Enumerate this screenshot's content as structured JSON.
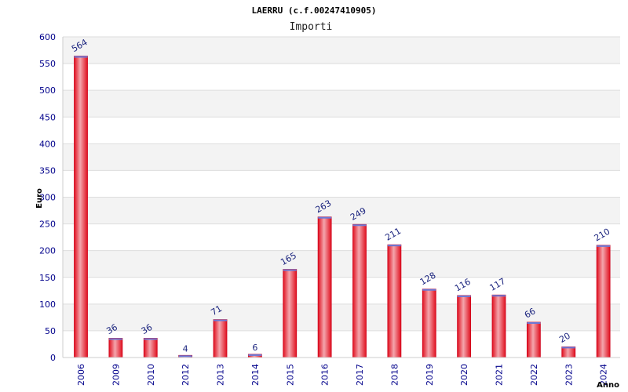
{
  "chart_data": {
    "type": "bar",
    "title": "LAERRU (c.f.00247410905)",
    "subtitle": "Importi",
    "xlabel": "Anno",
    "ylabel": "Euro",
    "categories": [
      "2006",
      "2009",
      "2010",
      "2012",
      "2013",
      "2014",
      "2015",
      "2016",
      "2017",
      "2018",
      "2019",
      "2020",
      "2021",
      "2022",
      "2023",
      "2024"
    ],
    "values": [
      564,
      36,
      36,
      4,
      71,
      6,
      165,
      263,
      249,
      211,
      128,
      116,
      117,
      66,
      20,
      210
    ],
    "ylim": [
      0,
      600
    ],
    "yticks": [
      0,
      50,
      100,
      150,
      200,
      250,
      300,
      350,
      400,
      450,
      500,
      550,
      600
    ],
    "grid": true,
    "colors": {
      "bar_edge": "#d0021b",
      "bar_light": "#f4a6ad",
      "bar_dark": "#e0101f",
      "band": "#f3f3f3",
      "tick_text": "#00008b",
      "label_text": "#1a237e"
    }
  }
}
